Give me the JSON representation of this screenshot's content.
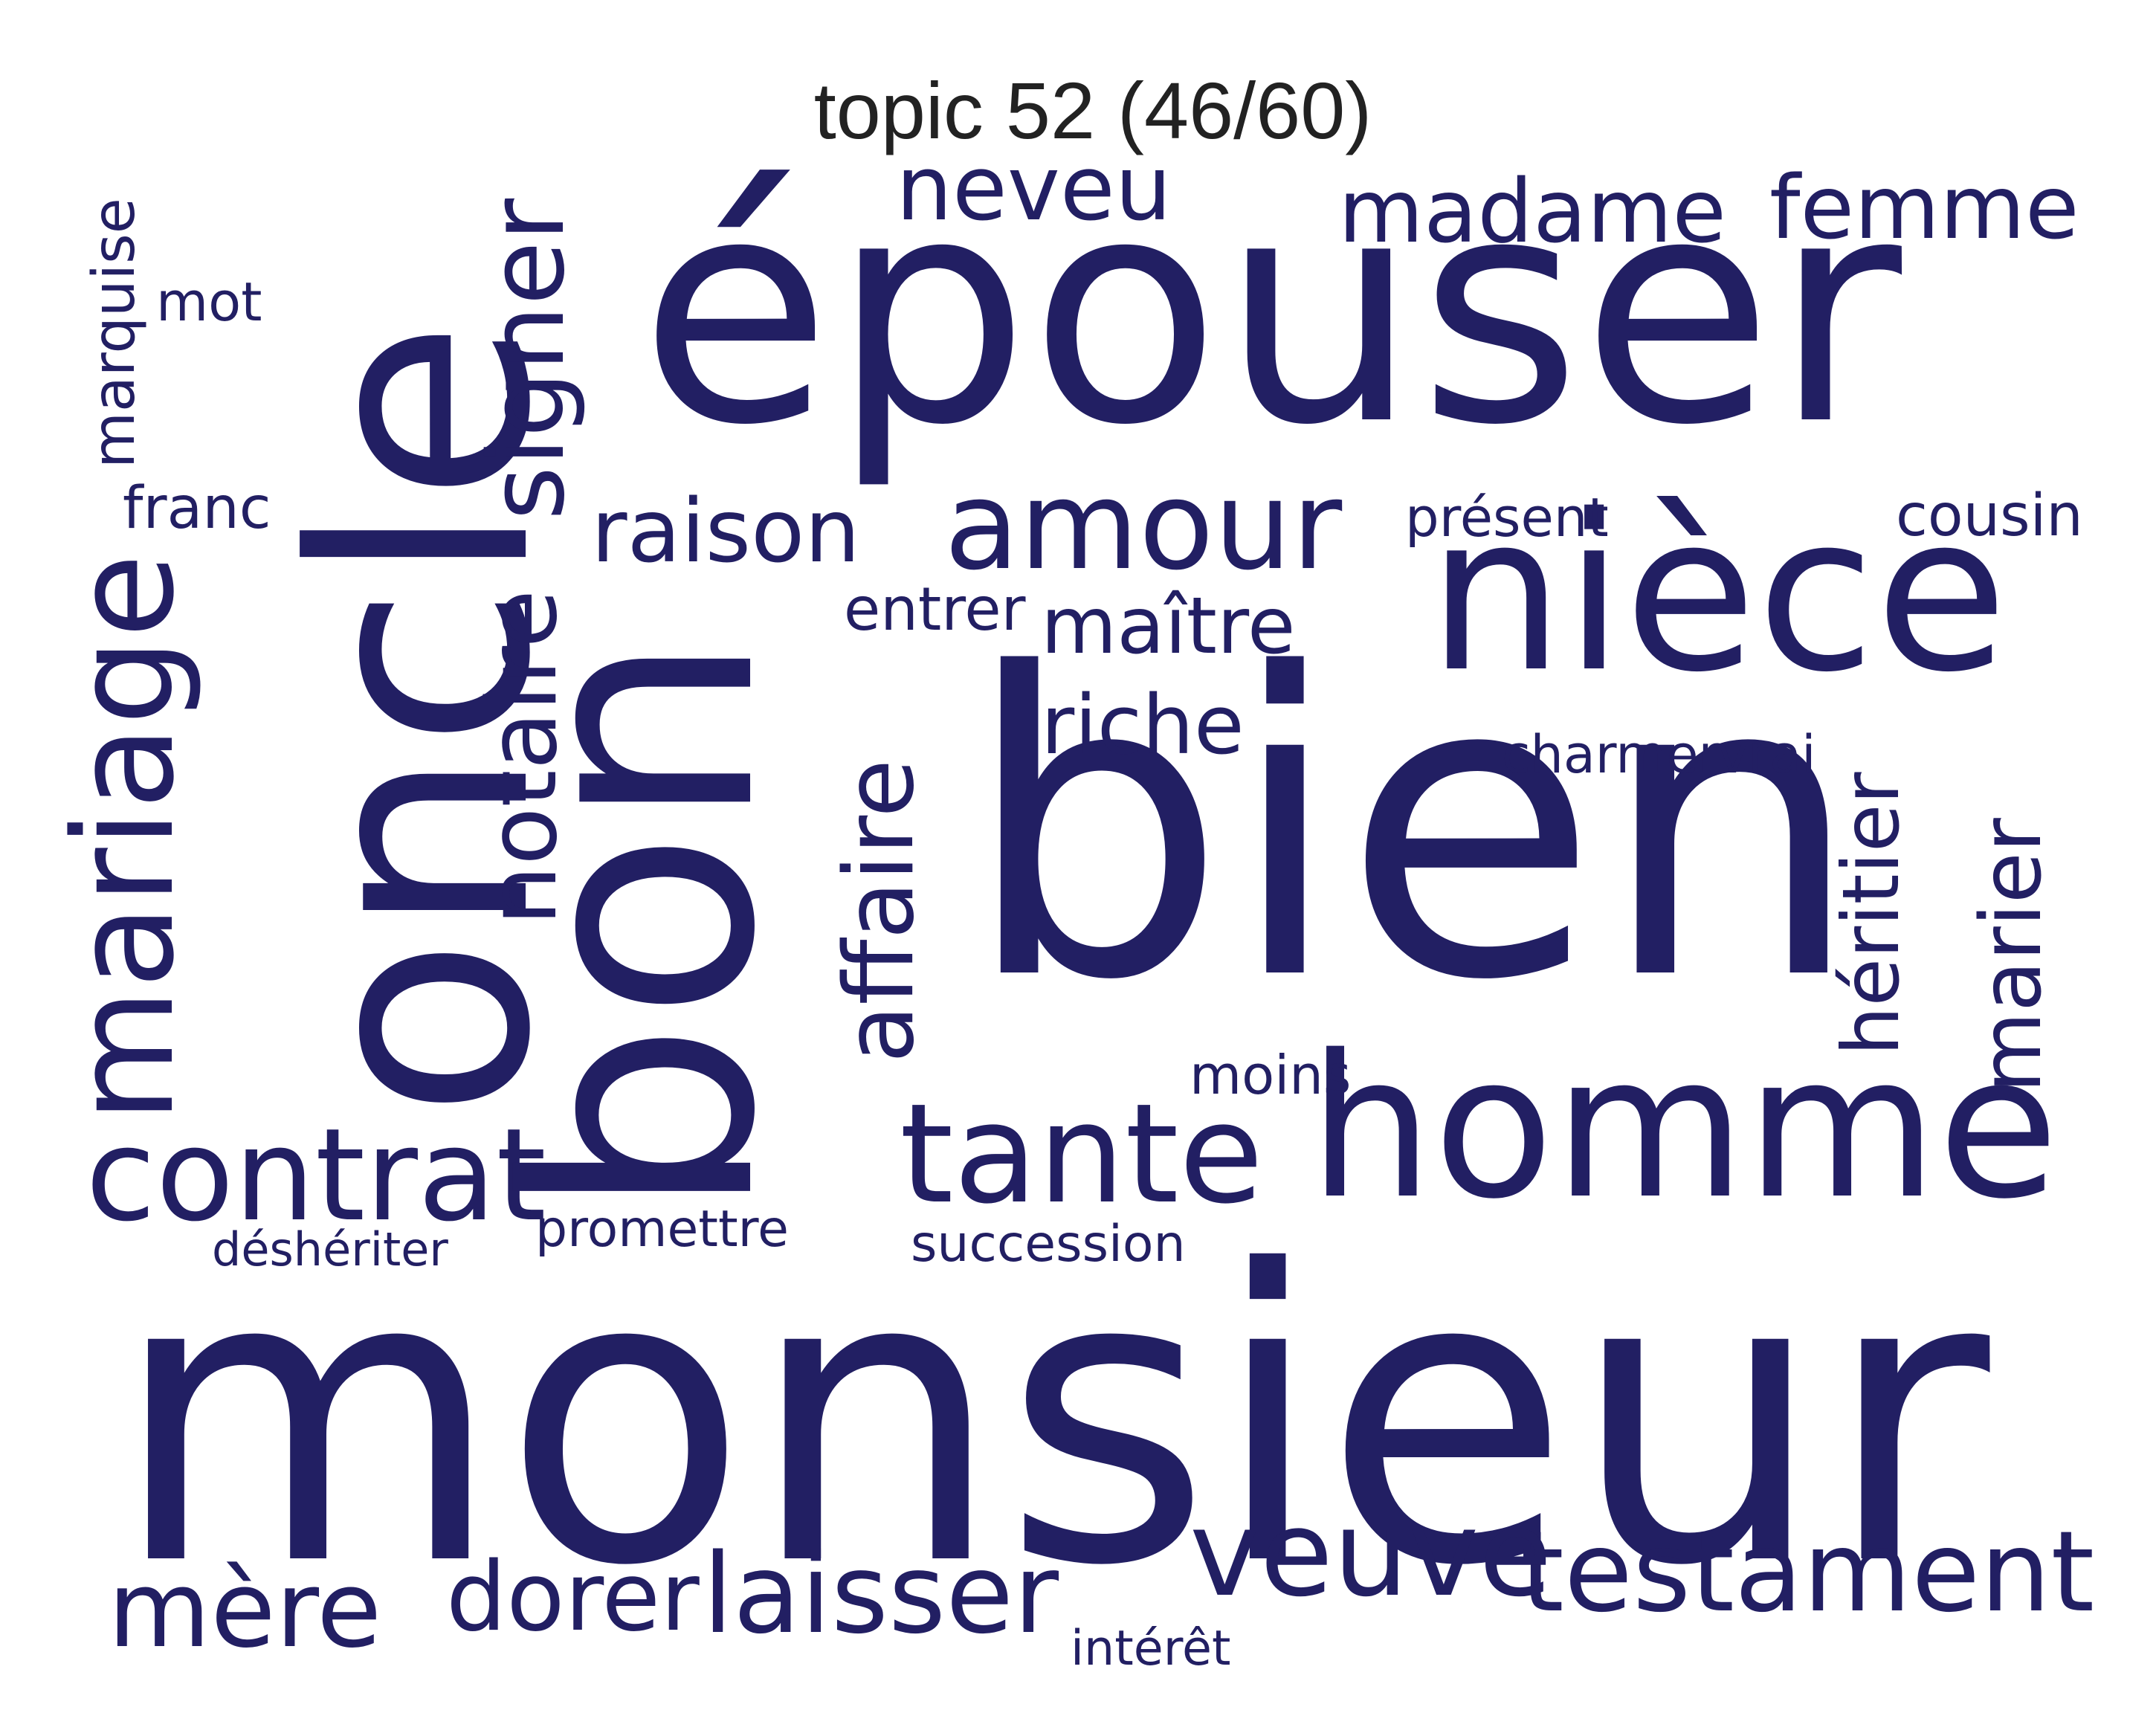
{
  "title": "topic 52 (46/60)",
  "colors": {
    "word": "#221f63",
    "title": "#222222",
    "background": "#ffffff"
  },
  "words": {
    "monsieur": "monsieur",
    "bien": "bien",
    "epouser": "épouser",
    "oncle": "oncle",
    "bon": "bon",
    "niece": "nièce",
    "homme": "homme",
    "mariage": "mariage",
    "contrat": "contrat",
    "tante": "tante",
    "amour": "amour",
    "testament": "testament",
    "veuve": "veuve",
    "laisser": "laisser",
    "mere": "mère",
    "dorer": "dorer",
    "madame": "madame",
    "femme": "femme",
    "neveu": "neveu",
    "signer": "signer",
    "raison": "raison",
    "notaire": "notaire",
    "affaire": "affaire",
    "maitre": "maître",
    "riche": "riche",
    "heritier": "héritier",
    "marier": "marier",
    "marquise": "marquise",
    "mot": "mot",
    "franc": "franc",
    "entrer": "entrer",
    "present": "présent",
    "cousin": "cousin",
    "charmer": "charmer",
    "vrai": "vrai",
    "moins": "moins",
    "promettre": "promettre",
    "succession": "succession",
    "desheriter": "déshériter",
    "interet": "intérêt"
  }
}
